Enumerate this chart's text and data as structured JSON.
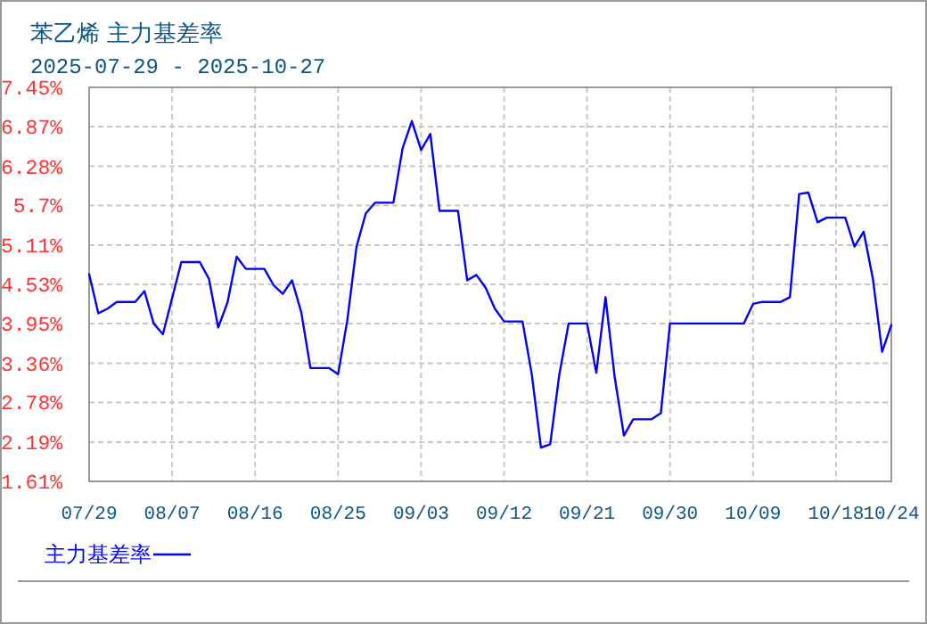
{
  "chart_data": {
    "type": "line",
    "title": "苯乙烯 主力基差率",
    "subtitle": "2025-07-29 - 2025-10-27",
    "x": [
      "2025-07-29",
      "2025-07-30",
      "2025-07-31",
      "2025-08-01",
      "2025-08-03",
      "2025-08-04",
      "2025-08-05",
      "2025-08-06",
      "2025-08-08",
      "2025-08-10",
      "2025-08-11",
      "2025-08-12",
      "2025-08-13",
      "2025-08-14",
      "2025-08-15",
      "2025-08-17",
      "2025-08-18",
      "2025-08-19",
      "2025-08-20",
      "2025-08-21",
      "2025-08-22",
      "2025-08-24",
      "2025-08-25",
      "2025-08-26",
      "2025-08-27",
      "2025-08-28",
      "2025-08-29",
      "2025-08-31",
      "2025-09-01",
      "2025-09-02",
      "2025-09-03",
      "2025-09-04",
      "2025-09-05",
      "2025-09-07",
      "2025-09-08",
      "2025-09-09",
      "2025-09-10",
      "2025-09-11",
      "2025-09-12",
      "2025-09-14",
      "2025-09-15",
      "2025-09-16",
      "2025-09-17",
      "2025-09-18",
      "2025-09-19",
      "2025-09-21",
      "2025-09-22",
      "2025-09-23",
      "2025-09-24",
      "2025-09-25",
      "2025-09-26",
      "2025-09-28",
      "2025-09-29",
      "2025-09-30",
      "2025-10-08",
      "2025-10-09",
      "2025-10-10",
      "2025-10-12",
      "2025-10-13",
      "2025-10-14",
      "2025-10-15",
      "2025-10-16",
      "2025-10-17",
      "2025-10-19",
      "2025-10-20",
      "2025-10-21",
      "2025-10-22",
      "2025-10-23",
      "2025-10-24"
    ],
    "series": [
      {
        "name": "主力基差率",
        "color": "#0000ff",
        "values": [
          4.68,
          4.1,
          4.17,
          4.27,
          4.27,
          4.43,
          3.95,
          3.79,
          4.86,
          4.86,
          4.61,
          3.89,
          4.26,
          4.94,
          4.76,
          4.76,
          4.52,
          4.39,
          4.59,
          4.12,
          3.29,
          3.29,
          3.2,
          4.0,
          5.09,
          5.58,
          5.74,
          5.74,
          6.55,
          6.95,
          6.52,
          6.76,
          5.62,
          5.62,
          4.59,
          4.67,
          4.48,
          4.17,
          3.98,
          3.98,
          3.2,
          2.11,
          2.16,
          3.2,
          3.95,
          3.95,
          3.22,
          4.34,
          3.15,
          2.29,
          2.53,
          2.53,
          2.62,
          3.95,
          3.95,
          4.24,
          4.27,
          4.27,
          4.34,
          5.87,
          5.89,
          5.45,
          5.52,
          5.52,
          5.09,
          5.31,
          4.61,
          3.53,
          3.93
        ]
      }
    ],
    "xlim": [
      "2025-07-29",
      "2025-10-24"
    ],
    "xticks": [
      {
        "value": "2025-07-29",
        "label": "07/29"
      },
      {
        "value": "2025-08-07",
        "label": "08/07"
      },
      {
        "value": "2025-08-16",
        "label": "08/16"
      },
      {
        "value": "2025-08-25",
        "label": "08/25"
      },
      {
        "value": "2025-09-03",
        "label": "09/03"
      },
      {
        "value": "2025-09-12",
        "label": "09/12"
      },
      {
        "value": "2025-09-21",
        "label": "09/21"
      },
      {
        "value": "2025-09-30",
        "label": "09/30"
      },
      {
        "value": "2025-10-09",
        "label": "10/09"
      },
      {
        "value": "2025-10-18",
        "label": "10/18"
      },
      {
        "value": "2025-10-24",
        "label": "10/24"
      }
    ],
    "ylim": [
      1.61,
      7.45
    ],
    "yticks": [
      {
        "value": 1.61,
        "label": "1.61%"
      },
      {
        "value": 2.19,
        "label": "2.19%"
      },
      {
        "value": 2.78,
        "label": "2.78%"
      },
      {
        "value": 3.36,
        "label": "3.36%"
      },
      {
        "value": 3.95,
        "label": "3.95%"
      },
      {
        "value": 4.53,
        "label": "4.53%"
      },
      {
        "value": 5.11,
        "label": "5.11%"
      },
      {
        "value": 5.7,
        "label": "5.7%"
      },
      {
        "value": 6.28,
        "label": "6.28%"
      },
      {
        "value": 6.87,
        "label": "6.87%"
      },
      {
        "value": 7.45,
        "label": "7.45%"
      }
    ],
    "grid": true,
    "legend": "bottom left",
    "marker": "none",
    "line_style": "solid"
  }
}
